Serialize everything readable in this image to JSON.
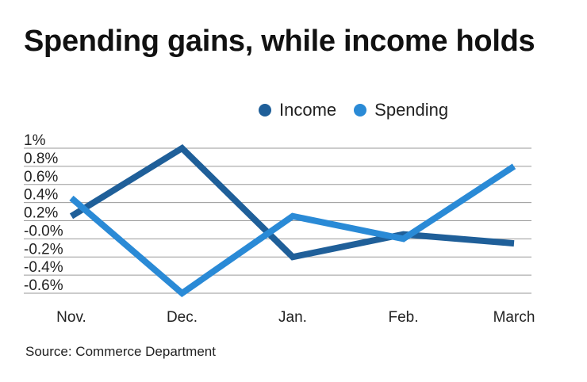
{
  "title": "Spending gains, while income holds",
  "source": "Source: Commerce Department",
  "chart_data": {
    "type": "line",
    "categories": [
      "Nov.",
      "Dec.",
      "Jan.",
      "Feb.",
      "March"
    ],
    "series": [
      {
        "name": "Income",
        "color": "#1f5f99",
        "values": [
          0.25,
          1.0,
          -0.2,
          0.05,
          -0.05
        ]
      },
      {
        "name": "Spending",
        "color": "#2a8ad6",
        "values": [
          0.45,
          -0.6,
          0.25,
          0.0,
          0.8
        ]
      }
    ],
    "y_ticks": [
      {
        "value": 1.0,
        "label": "1%"
      },
      {
        "value": 0.8,
        "label": "0.8%"
      },
      {
        "value": 0.6,
        "label": "0.6%"
      },
      {
        "value": 0.4,
        "label": "0.4%"
      },
      {
        "value": 0.2,
        "label": "0.2%"
      },
      {
        "value": 0.0,
        "label": "-0.0%"
      },
      {
        "value": -0.2,
        "label": "-0.2%"
      },
      {
        "value": -0.4,
        "label": "-0.4%"
      },
      {
        "value": -0.6,
        "label": "-0.6%"
      }
    ],
    "ylim": [
      -0.6,
      1.0
    ],
    "grid": true,
    "legend_position": "top-right",
    "xlabel": "",
    "ylabel": ""
  }
}
